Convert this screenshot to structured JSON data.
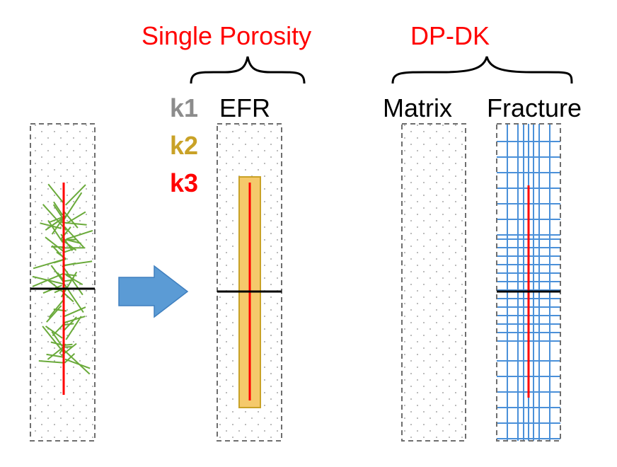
{
  "headers": {
    "single_porosity": "Single Porosity",
    "dpdk": "DP-DK"
  },
  "labels": {
    "efr": "EFR",
    "matrix": "Matrix",
    "fracture": "Fracture"
  },
  "legend": [
    {
      "text": "k1",
      "color": "#8c8c8c"
    },
    {
      "text": "k2",
      "color": "#c9a227"
    },
    {
      "text": "k3",
      "color": "#ff0000"
    }
  ],
  "colors": {
    "header_text": "#ff0000",
    "hydraulic_fracture": "#ff0000",
    "natural_fractures": "#6aaa3a",
    "efr_fill": "#f5c96b",
    "efr_border": "#c9a227",
    "fracture_grid": "#4a90d9",
    "arrow": "#5b9bd5",
    "well": "#000000",
    "box_border": "#6e6e6e"
  },
  "icons": {
    "arrow": "right-arrow-icon"
  }
}
